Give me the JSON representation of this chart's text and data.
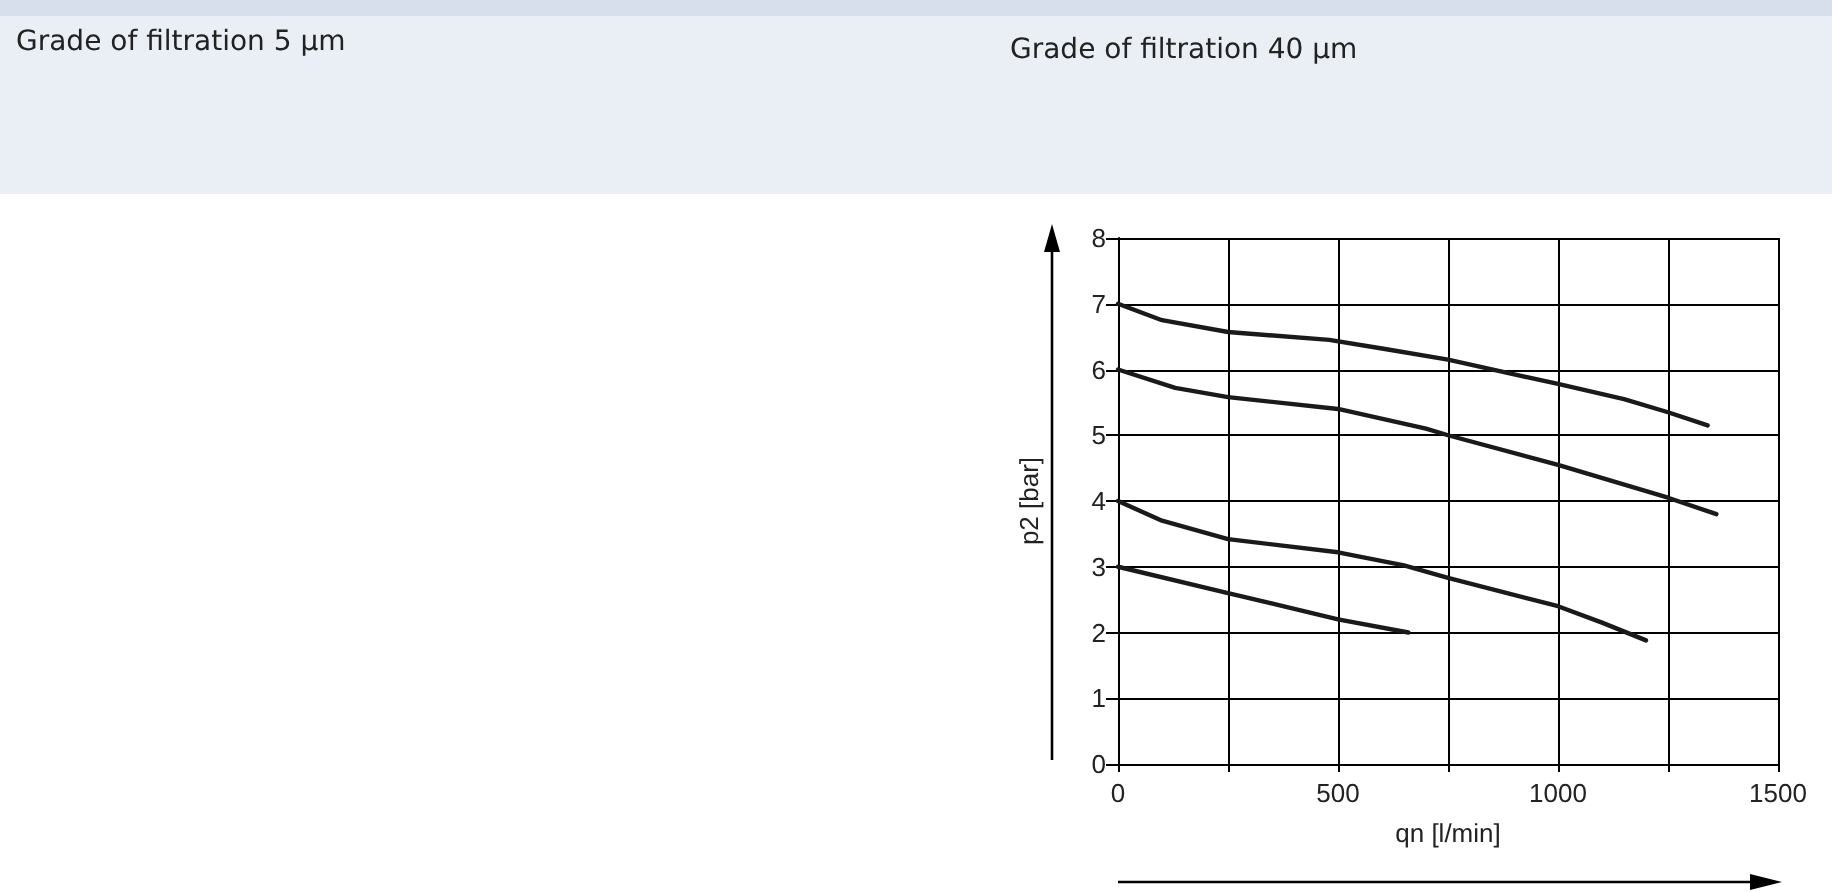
{
  "chart_data": {
    "type": "line",
    "title": "Grade of filtration 40 µm",
    "annotations": [
      "Grade of filtration 5 µm"
    ],
    "xlabel": "qn [l/min]",
    "ylabel": "p2 [bar]",
    "xlim": [
      0,
      1500
    ],
    "xticks": [
      0,
      {
        "value": 250,
        "label": null
      },
      500,
      {
        "value": 750,
        "label": null
      },
      1000,
      {
        "value": 1250,
        "label": null
      },
      1500
    ],
    "ylim": [
      0,
      8
    ],
    "yticks": [
      0,
      1,
      2,
      3,
      4,
      5,
      6,
      7,
      8
    ],
    "grid": true,
    "marker": "none",
    "line_style": "solid",
    "series": [
      {
        "color": "#1a1a1a",
        "x": [
          0,
          100,
          250,
          480,
          600,
          750,
          1000,
          1150,
          1250,
          1340
        ],
        "values": [
          7,
          6.75,
          6.57,
          6.45,
          6.32,
          6.15,
          5.78,
          5.55,
          5.35,
          5.15
        ]
      },
      {
        "color": "#1a1a1a",
        "x": [
          0,
          130,
          250,
          500,
          700,
          750,
          1000,
          1250,
          1360
        ],
        "values": [
          6,
          5.72,
          5.58,
          5.4,
          5.1,
          5.0,
          4.55,
          4.05,
          3.8
        ]
      },
      {
        "color": "#1a1a1a",
        "x": [
          0,
          100,
          250,
          500,
          650,
          750,
          1000,
          1100,
          1200
        ],
        "values": [
          4,
          3.7,
          3.42,
          3.22,
          3.02,
          2.83,
          2.4,
          2.15,
          1.88
        ]
      },
      {
        "color": "#1a1a1a",
        "x": [
          0,
          250,
          500,
          660
        ],
        "values": [
          3,
          2.6,
          2.2,
          2.0
        ]
      }
    ]
  }
}
